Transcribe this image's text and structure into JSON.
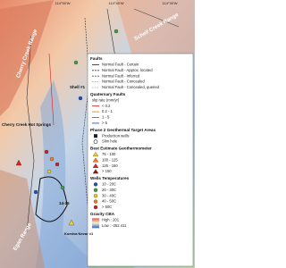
{
  "map": {
    "graticule": [
      "114°50'W",
      "114°40'W",
      "114°30'W"
    ],
    "labels": [
      "Cherry Creek Range",
      "Cherry Creek Hot Springs",
      "Schell Creek Range",
      "Egan Range",
      "Shell #1",
      "14-25",
      "Kumiva Nevar #1"
    ]
  },
  "legend": {
    "sections": [
      {
        "title": "Faults",
        "items": [
          {
            "label": "Normal Fault - Certain",
            "color": "#333333",
            "symbol": "line"
          },
          {
            "label": "Normal Fault - Approx. located",
            "color": "#333333",
            "symbol": "dash"
          },
          {
            "label": "Normal Fault - Inferred",
            "color": "#555555",
            "symbol": "dash"
          },
          {
            "label": "Normal Fault - Concealed",
            "color": "#777777",
            "symbol": "dot"
          },
          {
            "label": "Normal Fault - Concealed, queried",
            "color": "#999999",
            "symbol": "dot"
          }
        ]
      },
      {
        "title": "Quaternary Faults",
        "items": [
          {
            "label": "slip rate (mm/yr)",
            "color": "#000000",
            "symbol": "none"
          },
          {
            "label": "< 0.2",
            "color": "#e02020",
            "symbol": "line"
          },
          {
            "label": "0.2 - 1",
            "color": "#f08020",
            "symbol": "line"
          },
          {
            "label": "1 - 5",
            "color": "#30a030",
            "symbol": "line"
          },
          {
            "label": "> 5",
            "color": "#2060d0",
            "symbol": "line"
          }
        ]
      },
      {
        "title": "Phase 2 Geothermal Target Areas",
        "items": [
          {
            "label": "Production wells",
            "color": "#222222",
            "symbol": "square"
          },
          {
            "label": "Slim hole",
            "color": "#222222",
            "symbol": "circle-open"
          }
        ]
      },
      {
        "title": "Best Estimate Geothermometer",
        "items": [
          {
            "label": "75 - 100",
            "color": "#f0d020",
            "symbol": "triangle"
          },
          {
            "label": "100 - 125",
            "color": "#f08020",
            "symbol": "triangle"
          },
          {
            "label": "125 - 150",
            "color": "#e02020",
            "symbol": "triangle"
          },
          {
            "label": "> 150",
            "color": "#a01010",
            "symbol": "triangle"
          }
        ]
      },
      {
        "title": "Wells Temperatures",
        "items": [
          {
            "label": "10 - 20C",
            "color": "#2050c0",
            "symbol": "circle"
          },
          {
            "label": "20 - 30C",
            "color": "#40a040",
            "symbol": "circle"
          },
          {
            "label": "30 - 40C",
            "color": "#e0d020",
            "symbol": "circle"
          },
          {
            "label": "40 - 50C",
            "color": "#f08020",
            "symbol": "circle"
          },
          {
            "label": "> 50C",
            "color": "#d02020",
            "symbol": "circle"
          }
        ]
      },
      {
        "title": "Gravity CBA",
        "items": [
          {
            "label": "High : 201",
            "color": "#e06050",
            "symbol": "ramp"
          },
          {
            "label": "Low : -252.411",
            "color": "#3060c0",
            "symbol": "none"
          }
        ]
      }
    ]
  }
}
